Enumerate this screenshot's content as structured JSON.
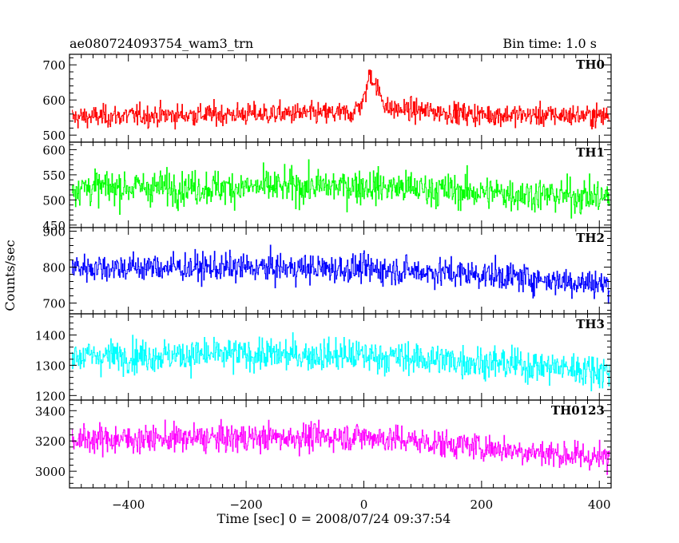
{
  "header": {
    "title": "ae080724093754_wam3_trn",
    "bin_time": "Bin time: 1.0 s"
  },
  "axes": {
    "xlabel": "Time [sec] 0 = 2008/07/24 09:37:54",
    "ylabel": "Counts/sec"
  },
  "chart_data": {
    "type": "line",
    "xlim": [
      -500,
      420
    ],
    "x_ticks": [
      -400,
      -200,
      0,
      200,
      400
    ],
    "x_tick_labels": [
      "−400",
      "−200",
      "0",
      "200",
      "400"
    ],
    "series": [
      {
        "name": "TH0",
        "color": "#ff0000",
        "ylim": [
          480,
          730
        ],
        "y_ticks": [
          500,
          600,
          700
        ],
        "mean": 558,
        "noise": 22,
        "trend": 0,
        "values": [
          {
            "x": -500,
            "y": 550
          },
          {
            "x": -400,
            "y": 555
          },
          {
            "x": -200,
            "y": 560
          },
          {
            "x": -20,
            "y": 562
          },
          {
            "x": 0,
            "y": 600
          },
          {
            "x": 10,
            "y": 680
          },
          {
            "x": 20,
            "y": 640
          },
          {
            "x": 40,
            "y": 575
          },
          {
            "x": 200,
            "y": 558
          },
          {
            "x": 420,
            "y": 555
          }
        ]
      },
      {
        "name": "TH1",
        "color": "#00ff00",
        "ylim": [
          445,
          615
        ],
        "y_ticks": [
          450,
          500,
          550,
          600
        ],
        "mean": 522,
        "noise": 24,
        "trend": -12,
        "values": [
          {
            "x": -500,
            "y": 525
          },
          {
            "x": -200,
            "y": 525
          },
          {
            "x": 0,
            "y": 528
          },
          {
            "x": 200,
            "y": 515
          },
          {
            "x": 420,
            "y": 505
          }
        ]
      },
      {
        "name": "TH2",
        "color": "#0000ff",
        "ylim": [
          670,
          910
        ],
        "y_ticks": [
          700,
          800,
          900
        ],
        "mean": 795,
        "noise": 28,
        "trend": -40,
        "values": [
          {
            "x": -500,
            "y": 800
          },
          {
            "x": -200,
            "y": 798
          },
          {
            "x": 0,
            "y": 795
          },
          {
            "x": 200,
            "y": 780
          },
          {
            "x": 420,
            "y": 750
          }
        ]
      },
      {
        "name": "TH3",
        "color": "#00ffff",
        "ylim": [
          1185,
          1470
        ],
        "y_ticks": [
          1200,
          1300,
          1400
        ],
        "mean": 1330,
        "noise": 38,
        "trend": -45,
        "values": [
          {
            "x": -500,
            "y": 1330
          },
          {
            "x": -200,
            "y": 1335
          },
          {
            "x": 0,
            "y": 1332
          },
          {
            "x": 200,
            "y": 1310
          },
          {
            "x": 420,
            "y": 1280
          }
        ]
      },
      {
        "name": "TH0123",
        "color": "#ff00ff",
        "ylim": [
          2890,
          3470
        ],
        "y_ticks": [
          3000,
          3200,
          3400
        ],
        "mean": 3210,
        "noise": 65,
        "trend": -110,
        "values": [
          {
            "x": -500,
            "y": 3210
          },
          {
            "x": -200,
            "y": 3220
          },
          {
            "x": 0,
            "y": 3230
          },
          {
            "x": 200,
            "y": 3160
          },
          {
            "x": 420,
            "y": 3080
          }
        ]
      }
    ]
  }
}
